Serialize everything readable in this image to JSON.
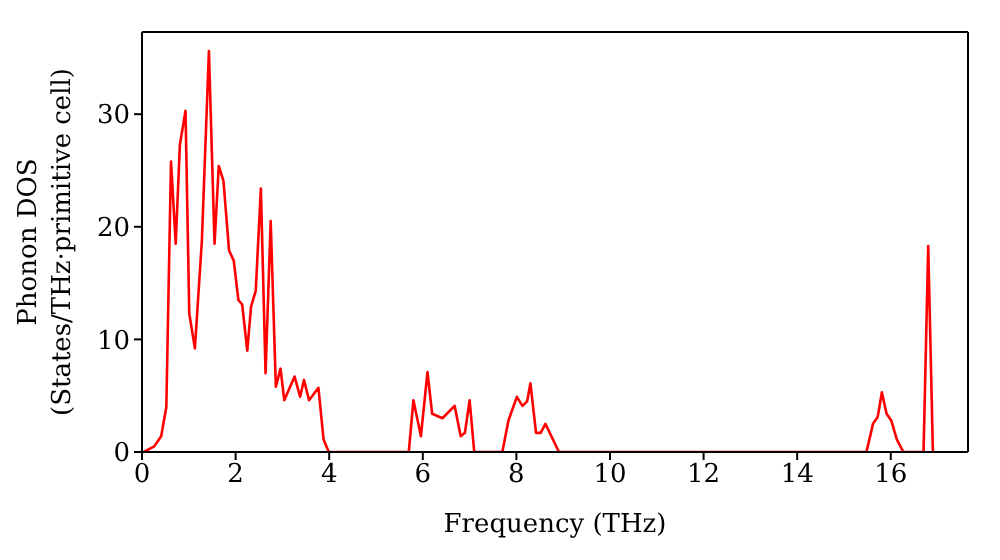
{
  "chart_data": {
    "type": "line",
    "xlabel": "Frequency (THz)",
    "ylabel": "Phonon DOS\n(States/THz·primitive cell)",
    "x": [
      0.04,
      0.26,
      0.41,
      0.52,
      0.62,
      0.72,
      0.81,
      0.93,
      1.01,
      1.13,
      1.28,
      1.43,
      1.55,
      1.64,
      1.74,
      1.86,
      1.96,
      2.06,
      2.14,
      2.25,
      2.33,
      2.43,
      2.54,
      2.64,
      2.75,
      2.86,
      2.96,
      3.04,
      3.26,
      3.38,
      3.46,
      3.57,
      3.77,
      3.88,
      3.99,
      5.7,
      5.8,
      5.96,
      6.1,
      6.2,
      6.42,
      6.68,
      6.81,
      6.9,
      7.0,
      7.1,
      7.7,
      7.83,
      8.01,
      8.13,
      8.23,
      8.3,
      8.42,
      8.52,
      8.62,
      8.91,
      15.48,
      15.62,
      15.72,
      15.81,
      15.91,
      16.01,
      16.13,
      16.27,
      16.7,
      16.8,
      16.9
    ],
    "series": [
      {
        "color": "#ff0000",
        "values": [
          0,
          0.5,
          1.4,
          4,
          25.8,
          18.5,
          27.3,
          30.3,
          12.3,
          9.2,
          18.8,
          35.6,
          18.5,
          25.4,
          24.1,
          17.9,
          17,
          13.5,
          13.1,
          9,
          12.9,
          14.3,
          23.4,
          7,
          20.5,
          5.8,
          7.4,
          4.6,
          6.7,
          4.9,
          6.4,
          4.6,
          5.7,
          1.1,
          0,
          0,
          4.6,
          1.4,
          7.1,
          3.4,
          3,
          4.1,
          1.4,
          1.7,
          4.6,
          0,
          0,
          2.8,
          4.9,
          4.1,
          4.5,
          6.1,
          1.7,
          1.7,
          2.5,
          0,
          0,
          2.5,
          3.1,
          5.3,
          3.4,
          2.8,
          1.1,
          0,
          0,
          18.3,
          0
        ]
      }
    ],
    "xlim": [
      0,
      17.65
    ],
    "xticks": [
      0,
      2,
      4,
      6,
      8,
      10,
      12,
      14,
      16
    ],
    "ylim": [
      0,
      37.3
    ],
    "yticks": [
      0,
      10,
      20,
      30
    ],
    "grid": false,
    "legend": false,
    "marker": "none",
    "line_style": "solid"
  }
}
